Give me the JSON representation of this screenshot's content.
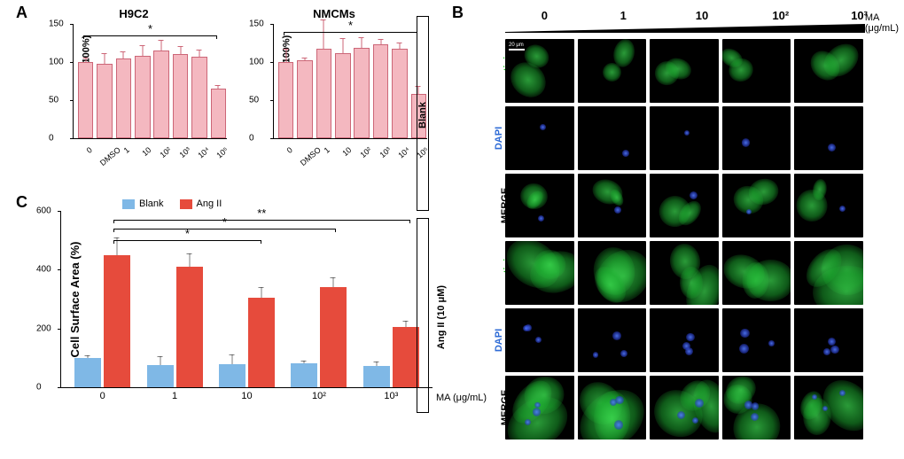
{
  "panel_a": {
    "label": "A",
    "charts": [
      {
        "title": "H9C2",
        "ylabel": "Cell Survival (100%)",
        "ylim": [
          0,
          150
        ],
        "ytick_step": 50,
        "categories": [
          "0",
          "DMSO",
          "1",
          "10",
          "10²",
          "10³",
          "10⁴",
          "10⁵"
        ],
        "values": [
          100,
          98,
          105,
          108,
          115,
          110,
          107,
          65
        ],
        "errors": [
          7,
          15,
          10,
          15,
          15,
          12,
          10,
          6
        ],
        "bar_color": "#f4b8c0",
        "bar_border": "#cc6677",
        "sig": {
          "from": 0,
          "to": 7,
          "label": "*",
          "y": 135
        }
      },
      {
        "title": "NMCMs",
        "ylabel": "Cell Survival (100%)",
        "ylim": [
          0,
          150
        ],
        "ytick_step": 50,
        "categories": [
          "0",
          "DMSO",
          "1",
          "10",
          "10²",
          "10³",
          "10⁴",
          "10⁵"
        ],
        "values": [
          100,
          102,
          117,
          112,
          119,
          123,
          117,
          58
        ],
        "errors": [
          18,
          5,
          40,
          20,
          15,
          8,
          10,
          12
        ],
        "bar_color": "#f4b8c0",
        "bar_border": "#cc6677",
        "sig": {
          "from": 0,
          "to": 7,
          "label": "*",
          "y": 140
        }
      }
    ]
  },
  "panel_c": {
    "label": "C",
    "ylabel": "Cell Surface Area (%)",
    "ylim": [
      0,
      600
    ],
    "ytick_step": 200,
    "xlabel": "MA (μg/mL)",
    "categories": [
      "0",
      "1",
      "10",
      "10²",
      "10³"
    ],
    "series": [
      {
        "name": "Blank",
        "color": "#7fb8e6",
        "values": [
          100,
          75,
          78,
          80,
          73
        ],
        "errors": [
          8,
          30,
          32,
          10,
          15
        ]
      },
      {
        "name": "Ang II",
        "color": "#e64b3c",
        "values": [
          450,
          410,
          305,
          340,
          205
        ],
        "errors": [
          60,
          45,
          35,
          35,
          20
        ]
      }
    ],
    "sigs": [
      {
        "from_group": 0,
        "to_group": 2,
        "series": 1,
        "y": 500,
        "label": "*"
      },
      {
        "from_group": 0,
        "to_group": 3,
        "series": 1,
        "y": 540,
        "label": "*"
      },
      {
        "from_group": 0,
        "to_group": 4,
        "series": 1,
        "y": 570,
        "label": "**"
      }
    ]
  },
  "panel_b": {
    "label": "B",
    "unit_label": "MA\n(μg/mL)",
    "concentrations": [
      "0",
      "1",
      "10",
      "10²",
      "10³"
    ],
    "row_groups": [
      {
        "name": "Blank",
        "rows": [
          "α-actinin",
          "DAPI",
          "MERGE"
        ]
      },
      {
        "name": "Ang II (10 μM)",
        "rows": [
          "α-actinin",
          "DAPI",
          "MERGE"
        ]
      }
    ],
    "scalebar_text": "20 μm",
    "colors": {
      "actinin": "#2bca2b",
      "dapi": "#2e6bd6",
      "bg": "#000000"
    }
  }
}
